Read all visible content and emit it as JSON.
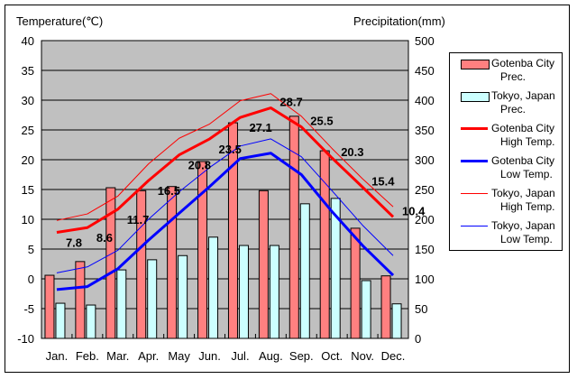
{
  "chart_data": {
    "type": "bar+line",
    "left_axis_title": "Temperature(℃)",
    "right_axis_title": "Precipitation(mm)",
    "categories": [
      "Jan.",
      "Feb.",
      "Mar.",
      "Apr.",
      "May",
      "Jun.",
      "Jul.",
      "Aug.",
      "Sep.",
      "Oct.",
      "Nov.",
      "Dec."
    ],
    "left_ylim": [
      -10,
      40
    ],
    "left_ticks": [
      "40",
      "35",
      "30",
      "25",
      "20",
      "15",
      "10",
      "5",
      "0",
      "-5",
      "-10"
    ],
    "right_ylim": [
      0,
      500
    ],
    "right_ticks": [
      "500",
      "450",
      "400",
      "350",
      "300",
      "250",
      "200",
      "150",
      "100",
      "50",
      "0"
    ],
    "grid": true,
    "legend_position": "right",
    "bar_series": [
      {
        "name": "Gotenba City Prec.",
        "line1": "Gotenba City",
        "line2": "Prec.",
        "color": "#ff8080",
        "values": [
          106,
          129,
          253,
          248,
          255,
          297,
          362,
          248,
          373,
          315,
          185,
          105
        ]
      },
      {
        "name": "Tokyo, Japan Prec.",
        "line1": "Tokyo, Japan",
        "line2": "Prec.",
        "color": "#ccffff",
        "values": [
          59,
          56,
          115,
          132,
          139,
          170,
          156,
          156,
          226,
          235,
          97,
          58
        ]
      }
    ],
    "line_series": [
      {
        "name": "Gotenba City High Temp.",
        "line1": "Gotenba City",
        "line2": "High Temp.",
        "color": "#ff0000",
        "width": 3,
        "values": [
          7.8,
          8.6,
          11.7,
          16.5,
          20.8,
          23.5,
          27.1,
          28.7,
          25.5,
          20.3,
          15.4,
          10.4
        ],
        "labels": [
          "7.8",
          "8.6",
          "11.7",
          "16.5",
          "20.8",
          "23.5",
          "27.1",
          "28.7",
          "25.5",
          "20.3",
          "15.4",
          "10.4"
        ]
      },
      {
        "name": "Gotenba City Low Temp.",
        "line1": "Gotenba City",
        "line2": "Low Temp.",
        "color": "#0000ff",
        "width": 3,
        "values": [
          -1.8,
          -1.3,
          1.7,
          6.5,
          11.0,
          15.5,
          20.2,
          21.1,
          17.5,
          11.3,
          5.6,
          0.6
        ]
      },
      {
        "name": "Tokyo, Japan High Temp.",
        "line1": "Tokyo, Japan",
        "line2": "High Temp.",
        "color": "#ff0000",
        "width": 1,
        "values": [
          9.8,
          10.9,
          13.9,
          19.3,
          23.6,
          26.0,
          29.9,
          31.1,
          27.3,
          21.9,
          16.8,
          12.1
        ]
      },
      {
        "name": "Tokyo, Japan Low Temp.",
        "line1": "Tokyo, Japan",
        "line2": "Low Temp.",
        "color": "#0000ff",
        "width": 1,
        "values": [
          1.0,
          2.0,
          4.8,
          10.0,
          14.6,
          18.7,
          22.3,
          23.5,
          20.5,
          14.8,
          9.0,
          3.9
        ]
      }
    ]
  }
}
